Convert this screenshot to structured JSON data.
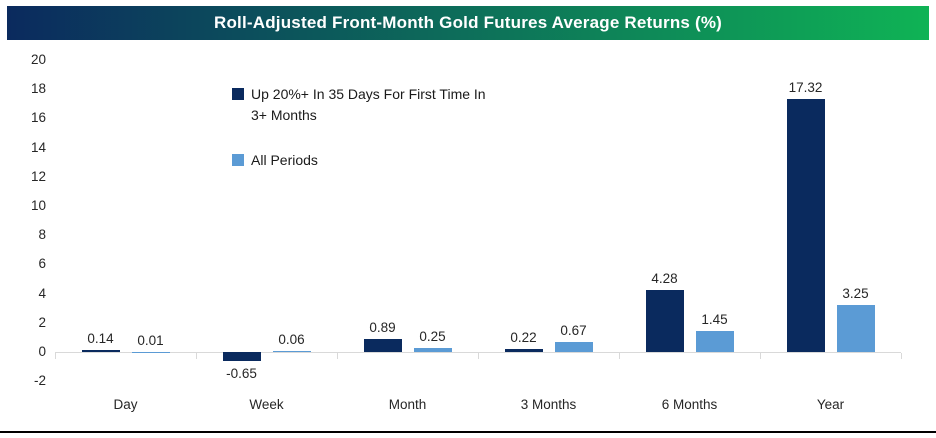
{
  "title_bar": {
    "text": "Roll-Adjusted Front-Month Gold Futures Average Returns (%)",
    "gradient_left": "#0B2A5E",
    "gradient_right": "#0FB355",
    "text_color": "#FFFFFF"
  },
  "chart_data": {
    "type": "bar",
    "title": "Roll-Adjusted Front-Month Gold Futures Average Returns (%)",
    "categories": [
      "Day",
      "Week",
      "Month",
      "3 Months",
      "6 Months",
      "Year"
    ],
    "series": [
      {
        "name": "Up 20%+ In 35 Days For First Time In 3+ Months",
        "color": "#0A2A5E",
        "values": [
          0.14,
          -0.65,
          0.89,
          0.22,
          4.28,
          17.32
        ]
      },
      {
        "name": "All Periods",
        "color": "#5B9BD5",
        "values": [
          0.01,
          0.06,
          0.25,
          0.67,
          1.45,
          3.25
        ]
      }
    ],
    "xlabel": "",
    "ylabel": "",
    "ylim": [
      -2,
      20
    ],
    "ytick_step": 2,
    "grid": false,
    "legend_position": "inside-top-left",
    "data_labels": true,
    "data_label_format": "0.00",
    "axis_color": "#D9D9D9",
    "text_color": "#262626"
  }
}
